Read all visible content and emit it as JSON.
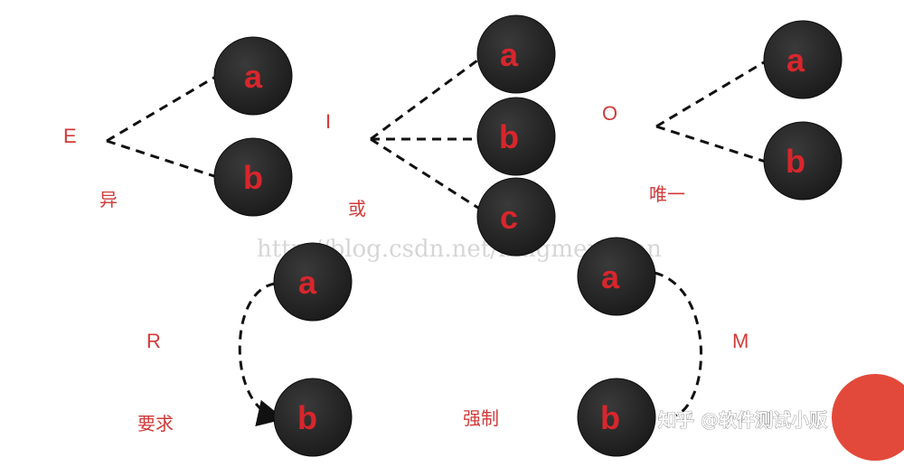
{
  "colors": {
    "node_fill": "#232323",
    "node_label": "#d8262c",
    "relation_text": "#d23a3a",
    "connector": "#111111",
    "watermark": "#c9c9c9"
  },
  "groups": {
    "E": {
      "letter": "E",
      "desc": "异",
      "nodes": [
        "a",
        "b"
      ]
    },
    "I": {
      "letter": "I",
      "desc": "或",
      "nodes": [
        "a",
        "b",
        "c"
      ]
    },
    "O": {
      "letter": "O",
      "desc": "唯一",
      "nodes": [
        "a",
        "b"
      ]
    },
    "R": {
      "letter": "R",
      "desc": "要求",
      "nodes": [
        "a",
        "b"
      ]
    },
    "M": {
      "letter": "M",
      "desc": "强制",
      "nodes": [
        "a",
        "b"
      ]
    }
  },
  "watermark": {
    "url": "http://blog.csdn.net/ningmenghan",
    "brand": "知乎 @软件测试小贩"
  }
}
